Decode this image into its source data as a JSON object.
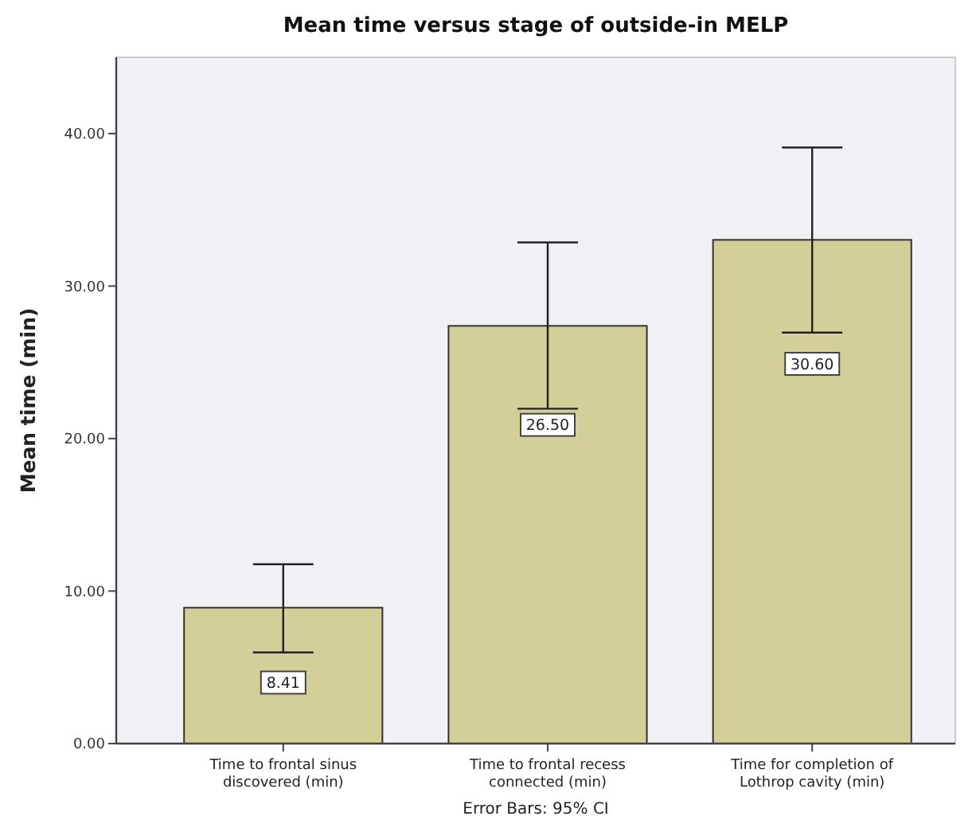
{
  "chart_data": {
    "type": "bar",
    "title": "Mean time versus stage of outside-in MELP",
    "ylabel": "Mean time (min)",
    "categories": [
      "Time to frontal sinus discovered (min)",
      "Time to frontal recess connected (min)",
      "Time for completion of Lothrop cavity (min)"
    ],
    "values": [
      8.91,
      27.39,
      33.03
    ],
    "errors": [
      [
        5.98,
        11.76
      ],
      [
        21.96,
        32.86
      ],
      [
        26.95,
        39.09
      ]
    ],
    "color": "#d3cf98",
    "ylim": [
      0,
      45
    ],
    "yticks": [
      {
        "value": 0,
        "label": "0.00"
      },
      {
        "value": 10,
        "label": "10.00"
      },
      {
        "value": 20,
        "label": "20.00"
      },
      {
        "value": 30,
        "label": "30.00"
      },
      {
        "value": 40,
        "label": "40.00"
      }
    ],
    "annotations": [
      {
        "text": "8.41",
        "x": "Time to frontal sinus discovered (min)",
        "y": 4.0
      },
      {
        "text": "26.50",
        "x": "Time to frontal recess connected (min)",
        "y": 20.9
      },
      {
        "text": "30.60",
        "x": "Time for completion of Lothrop cavity (min)",
        "y": 24.9
      },
      "Error Bars: 95% CI"
    ]
  }
}
